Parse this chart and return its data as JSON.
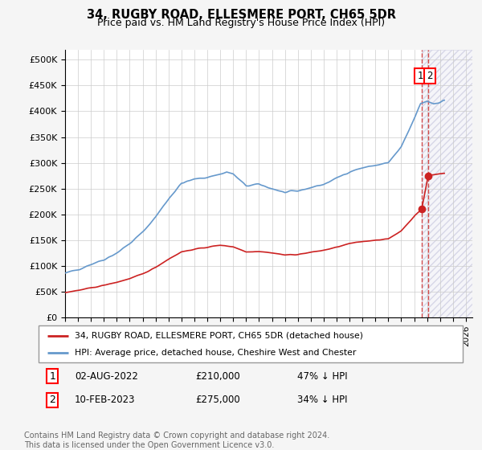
{
  "title": "34, RUGBY ROAD, ELLESMERE PORT, CH65 5DR",
  "subtitle": "Price paid vs. HM Land Registry's House Price Index (HPI)",
  "ylabel_ticks": [
    "£0",
    "£50K",
    "£100K",
    "£150K",
    "£200K",
    "£250K",
    "£300K",
    "£350K",
    "£400K",
    "£450K",
    "£500K"
  ],
  "ytick_vals": [
    0,
    50000,
    100000,
    150000,
    200000,
    250000,
    300000,
    350000,
    400000,
    450000,
    500000
  ],
  "ylim": [
    0,
    520000
  ],
  "xlim_start": 1995.0,
  "xlim_end": 2026.5,
  "hpi_color": "#6699cc",
  "price_color": "#cc2222",
  "dashed_color": "#cc2222",
  "legend_label_price": "34, RUGBY ROAD, ELLESMERE PORT, CH65 5DR (detached house)",
  "legend_label_hpi": "HPI: Average price, detached house, Cheshire West and Chester",
  "sale1_label": "1",
  "sale1_date": "02-AUG-2022",
  "sale1_price": "£210,000",
  "sale1_pct": "47% ↓ HPI",
  "sale2_label": "2",
  "sale2_date": "10-FEB-2023",
  "sale2_price": "£275,000",
  "sale2_pct": "34% ↓ HPI",
  "footnote": "Contains HM Land Registry data © Crown copyright and database right 2024.\nThis data is licensed under the Open Government Licence v3.0.",
  "sale1_x": 2022.583,
  "sale1_y": 210000,
  "sale2_x": 2023.083,
  "sale2_y": 275000,
  "vline1_x": 2022.583,
  "vline2_x": 2023.083,
  "hatched_region_start": 2022.583,
  "hatched_region_end": 2026.5,
  "bg_color": "#f5f5f5",
  "plot_bg_color": "#ffffff",
  "grid_color": "#cccccc"
}
